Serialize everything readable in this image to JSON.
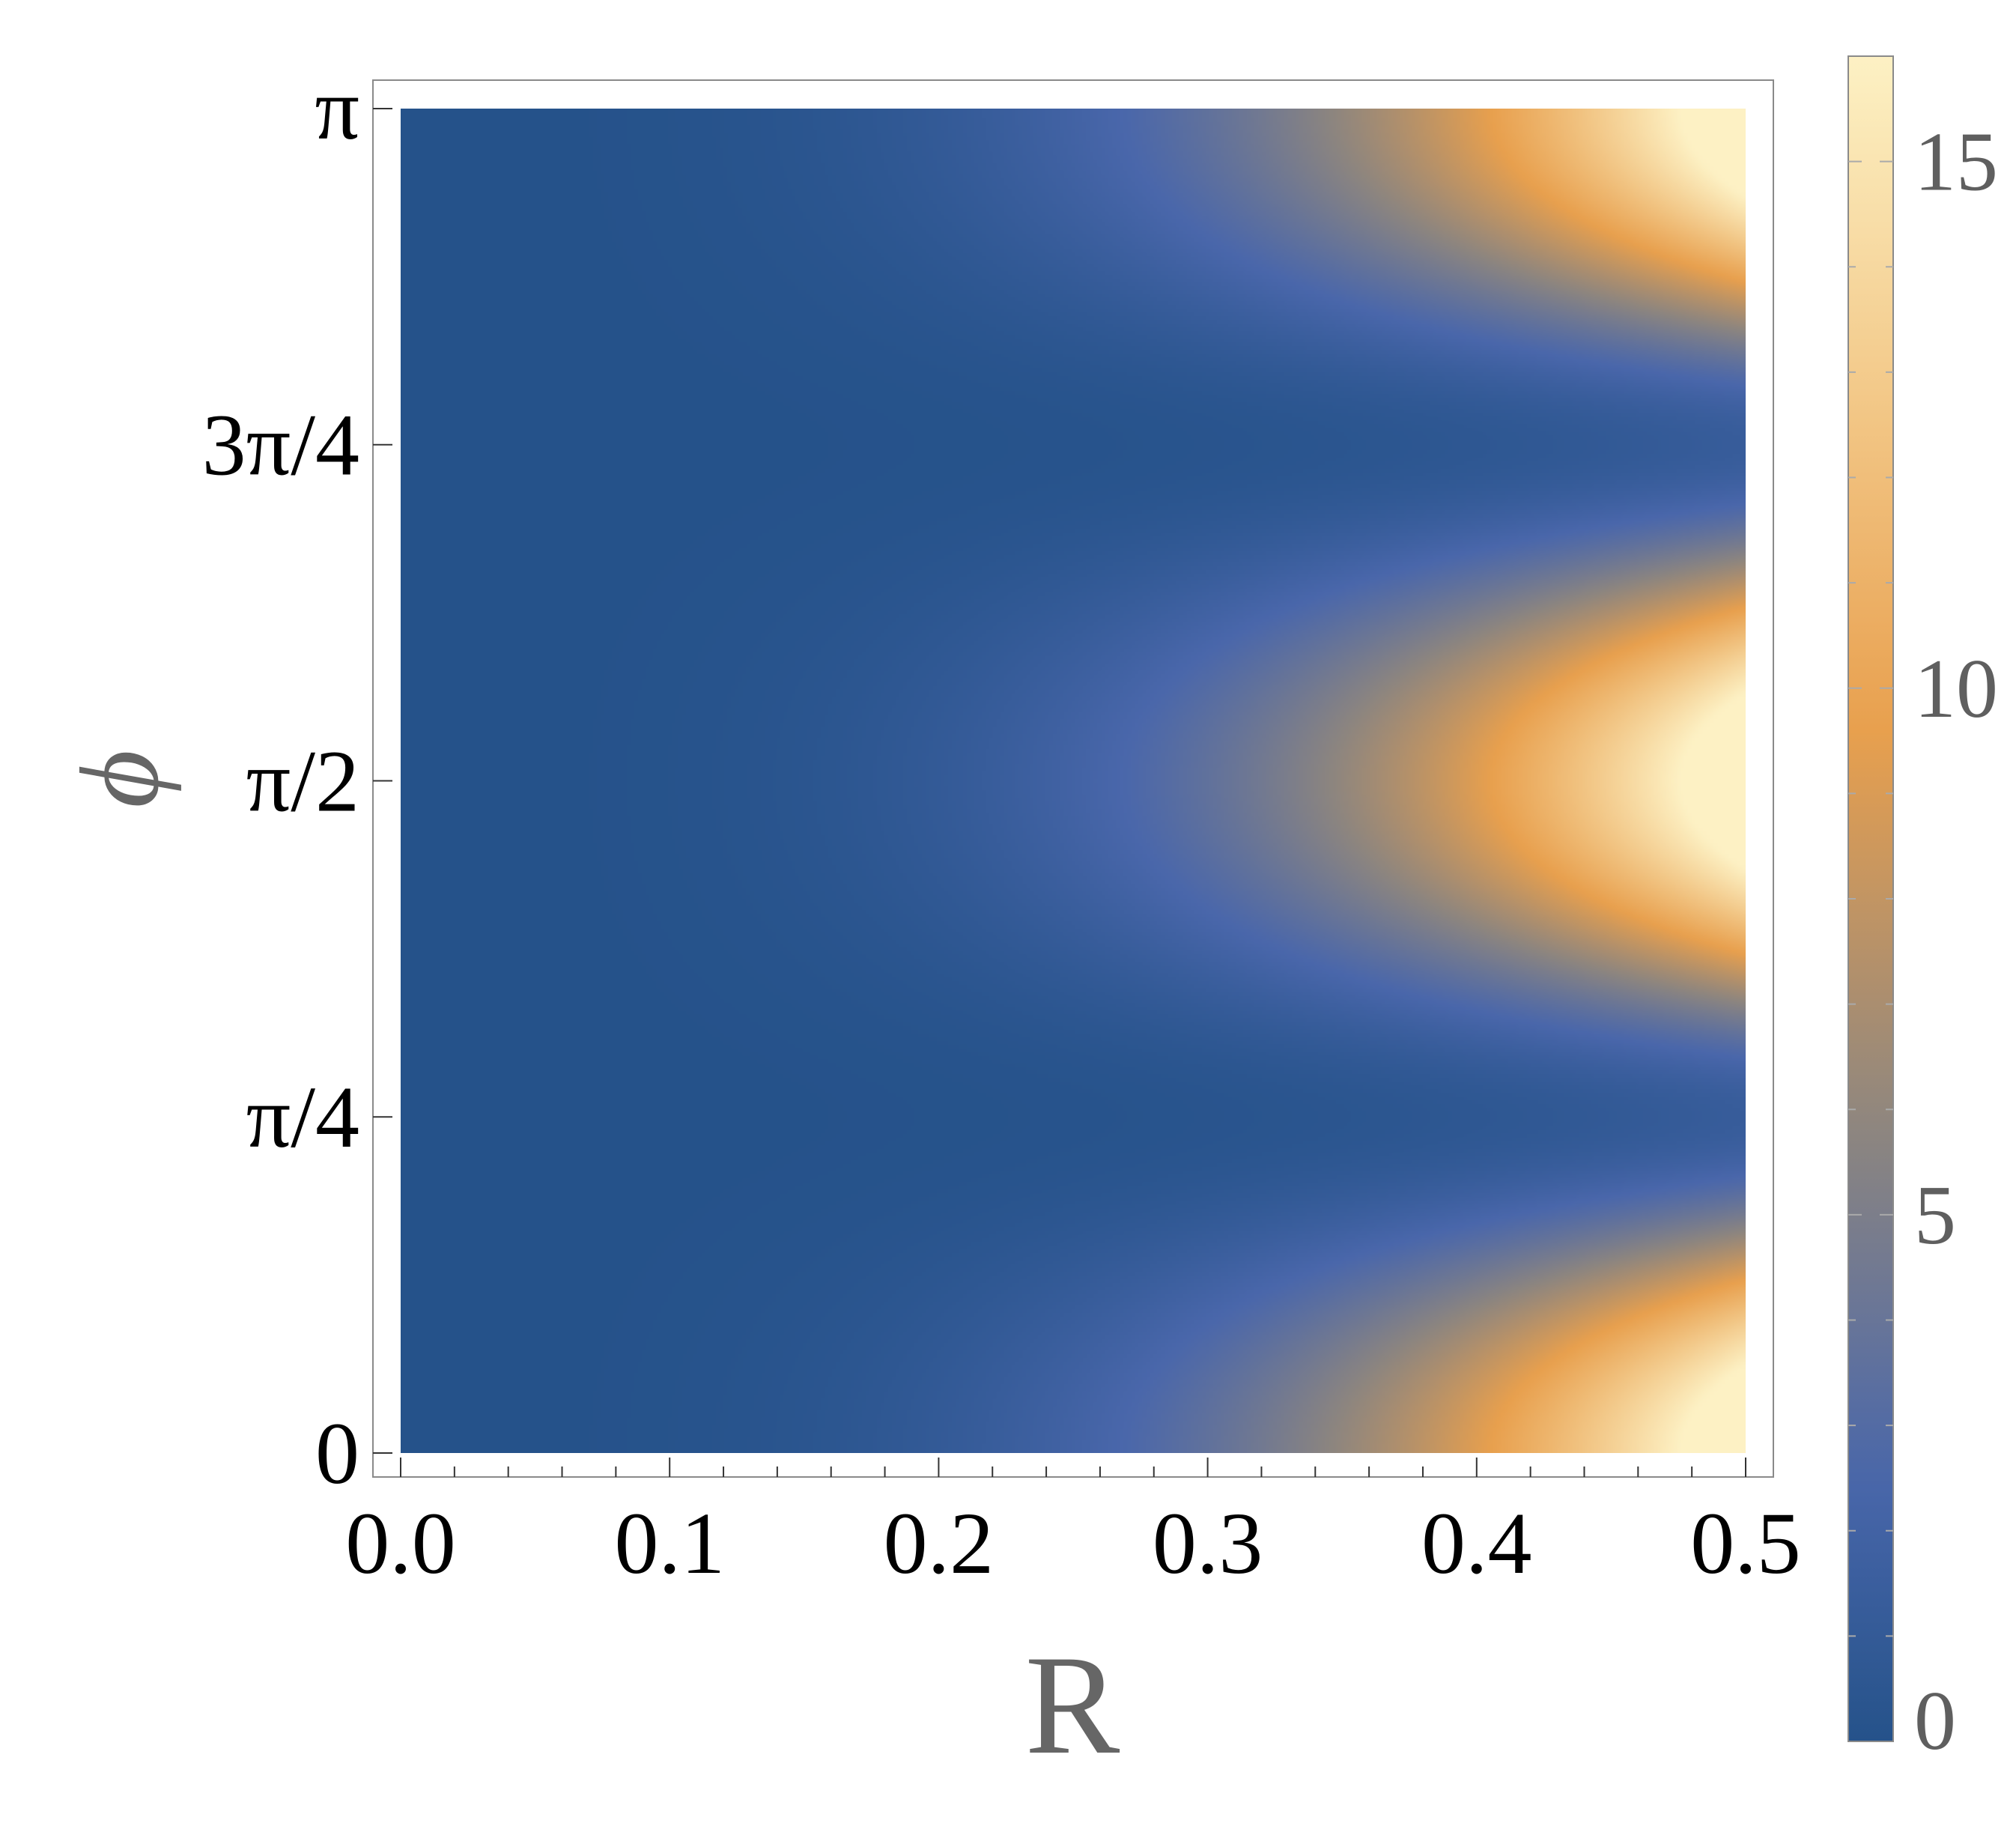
{
  "chart_data": {
    "type": "heatmap",
    "title": "",
    "xlabel": "R",
    "ylabel": "ϕ",
    "xlim": [
      0.0,
      0.5
    ],
    "ylim": [
      0,
      3.14159
    ],
    "x_ticks": [
      {
        "value": 0.0,
        "label": "0.0"
      },
      {
        "value": 0.1,
        "label": "0.1"
      },
      {
        "value": 0.2,
        "label": "0.2"
      },
      {
        "value": 0.3,
        "label": "0.3"
      },
      {
        "value": 0.4,
        "label": "0.4"
      },
      {
        "value": 0.5,
        "label": "0.5"
      }
    ],
    "y_ticks": [
      {
        "value": 0,
        "label": "0"
      },
      {
        "value": 0.7854,
        "label": "π/4"
      },
      {
        "value": 1.5708,
        "label": "π/2"
      },
      {
        "value": 2.3562,
        "label": "3π/4"
      },
      {
        "value": 3.14159,
        "label": "π"
      }
    ],
    "colorbar": {
      "range": [
        0,
        16
      ],
      "ticks": [
        {
          "value": 0,
          "label": "0"
        },
        {
          "value": 5,
          "label": "5"
        },
        {
          "value": 10,
          "label": "10"
        },
        {
          "value": 15,
          "label": "15"
        }
      ],
      "colors": [
        "#25528a",
        "#4a67ab",
        "#8c8580",
        "#e8a04e",
        "#fdf1c4"
      ]
    },
    "grid": false,
    "legend": "colorbar-right"
  }
}
